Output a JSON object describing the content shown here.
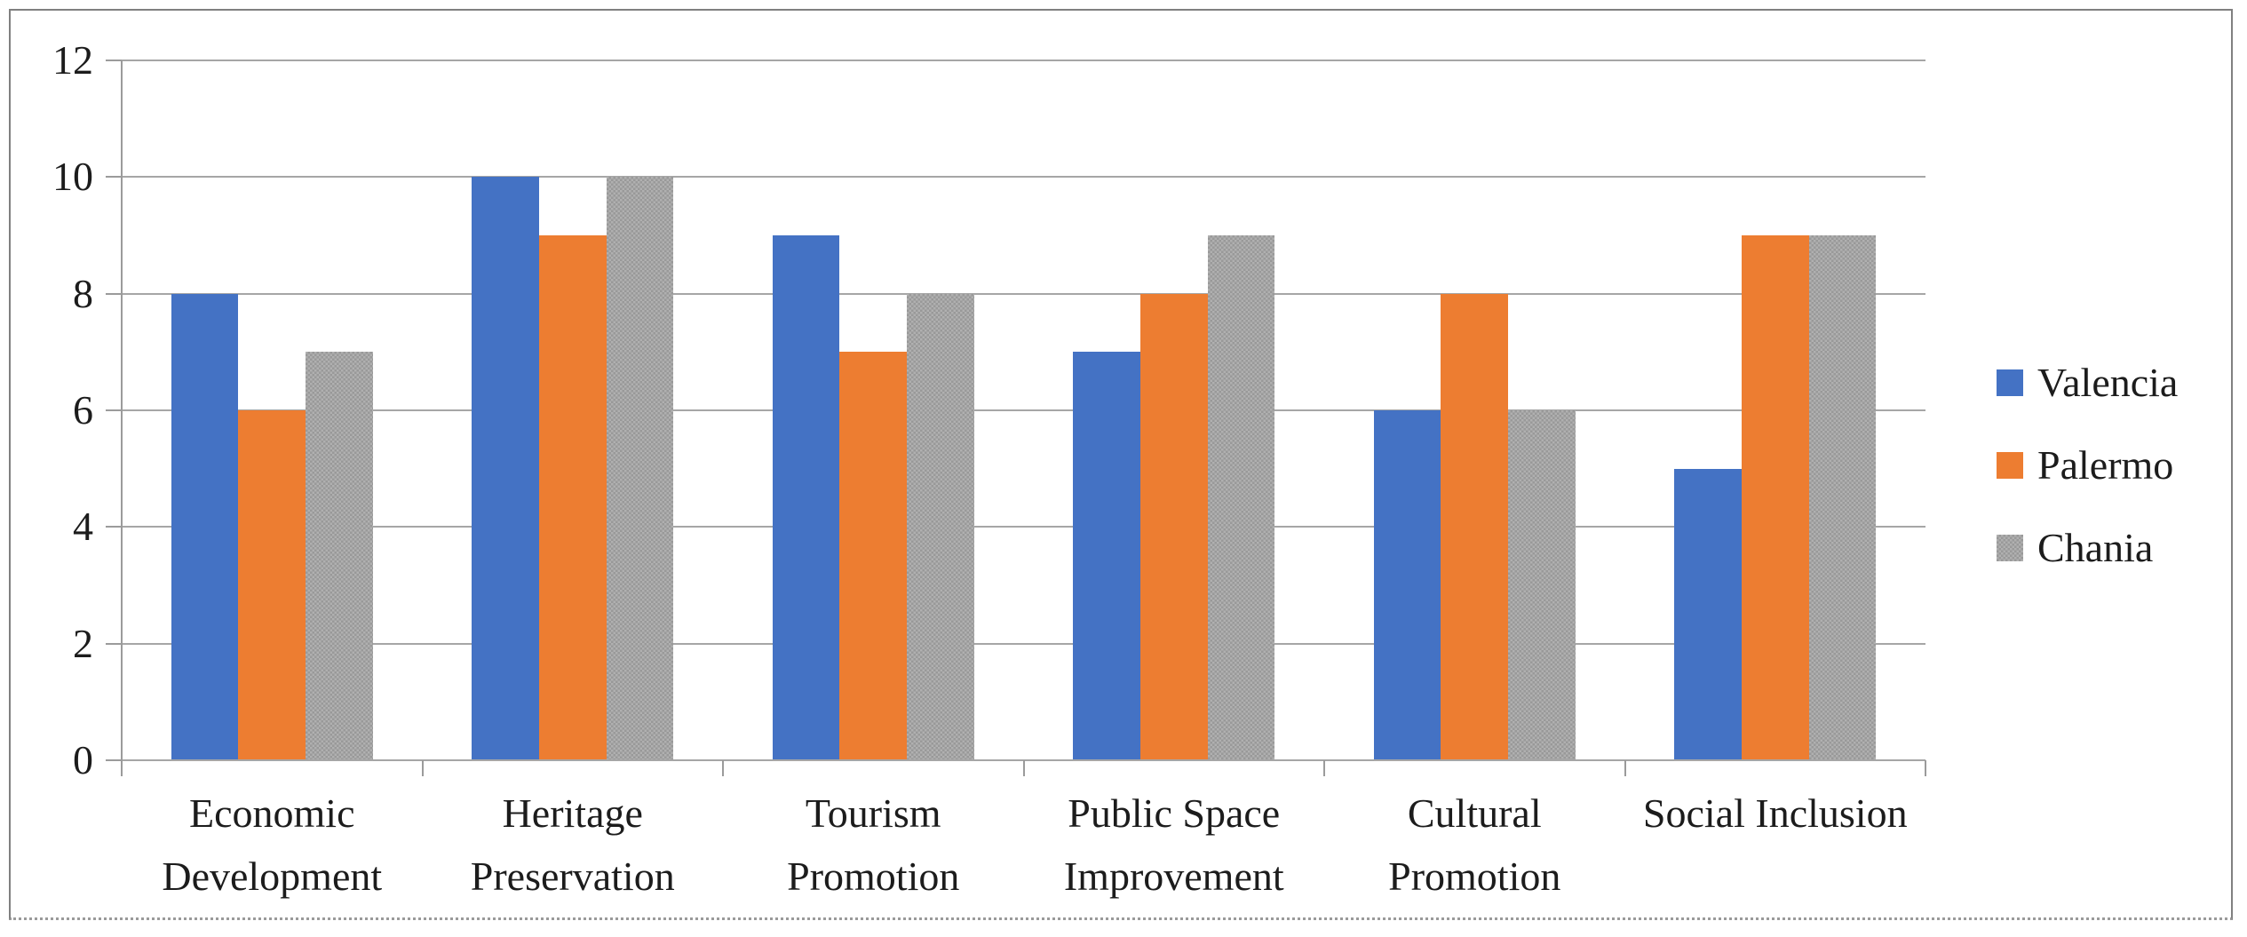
{
  "chart_data": {
    "type": "bar",
    "title": "",
    "categories": [
      "Economic Development",
      "Heritage Preservation",
      "Tourism Promotion",
      "Public Space Improvement",
      "Cultural Promotion",
      "Social Inclusion"
    ],
    "category_label_lines": [
      [
        "Economic",
        "Development"
      ],
      [
        "Heritage",
        "Preservation"
      ],
      [
        "Tourism",
        "Promotion"
      ],
      [
        "Public Space",
        "Improvement"
      ],
      [
        "Cultural",
        "Promotion"
      ],
      [
        "Social Inclusion"
      ]
    ],
    "series": [
      {
        "name": "Valencia",
        "color": "#4472C4",
        "pattern": false,
        "values": [
          8,
          10,
          9,
          7,
          6,
          5
        ]
      },
      {
        "name": "Palermo",
        "color": "#ED7D31",
        "pattern": false,
        "values": [
          6,
          9,
          7,
          8,
          8,
          9
        ]
      },
      {
        "name": "Chania",
        "color": "#A5A5A5",
        "pattern": true,
        "values": [
          7,
          10,
          8,
          9,
          6,
          9
        ]
      }
    ],
    "y_axis": {
      "min": 0,
      "max": 12,
      "tick_interval": 2,
      "tick_labels": [
        "0",
        "2",
        "4",
        "6",
        "8",
        "10",
        "12"
      ]
    },
    "xlabel": "",
    "ylabel": "",
    "grid": true,
    "legend_position": "right"
  },
  "colors": {
    "series_blue": "#4472C4",
    "series_orange": "#ED7D31",
    "series_gray": "#A5A5A5",
    "gridline": "#a6a6a6",
    "axis": "#9b9b9b",
    "frame_border": "#808080",
    "text": "#1c1c1c"
  }
}
